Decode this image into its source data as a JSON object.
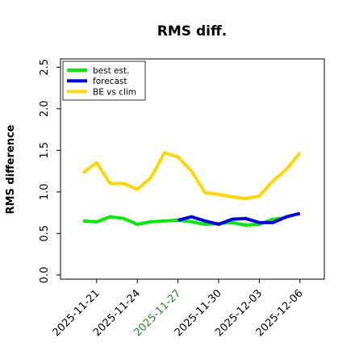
{
  "chart_data": {
    "type": "line",
    "title": "RMS diff.",
    "ylabel": "RMS difference",
    "xlabel": "",
    "ylim": [
      -0.05,
      2.6
    ],
    "yticks": [
      0.0,
      0.5,
      1.0,
      1.5,
      2.0,
      2.5
    ],
    "ytick_labels": [
      "0.0",
      "0.5",
      "1.0",
      "1.5",
      "2.0",
      "2.5"
    ],
    "x_dates": [
      "2025-11-20",
      "2025-11-21",
      "2025-11-22",
      "2025-11-23",
      "2025-11-24",
      "2025-11-25",
      "2025-11-26",
      "2025-11-27",
      "2025-11-28",
      "2025-11-29",
      "2025-11-30",
      "2025-12-01",
      "2025-12-02",
      "2025-12-03",
      "2025-12-04",
      "2025-12-05",
      "2025-12-06"
    ],
    "xtick_labels": [
      "2025-11-21",
      "2025-11-24",
      "2025-11-27",
      "2025-11-30",
      "2025-12-03",
      "2025-12-06"
    ],
    "xtick_highlight": "2025-11-27",
    "xtick_highlight_color": "#228B22",
    "legend_position": "top-left",
    "grid": false,
    "series": [
      {
        "name": "best est.",
        "color": "#00ee00",
        "x_start": 0,
        "values": [
          0.65,
          0.64,
          0.7,
          0.68,
          0.61,
          0.64,
          0.65,
          0.66,
          0.64,
          0.61,
          0.62,
          0.63,
          0.6,
          0.61,
          0.67,
          0.69
        ]
      },
      {
        "name": "forecast",
        "color": "#0000ee",
        "x_start": 7,
        "values": [
          0.66,
          0.7,
          0.65,
          0.61,
          0.67,
          0.68,
          0.63,
          0.63,
          0.7,
          0.74
        ]
      },
      {
        "name": "BE vs clim",
        "color": "#ffd700",
        "x_start": 0,
        "values": [
          1.23,
          1.35,
          1.1,
          1.1,
          1.03,
          1.17,
          1.47,
          1.42,
          1.25,
          0.99,
          0.97,
          0.94,
          0.92,
          0.95,
          1.13,
          1.27,
          1.47
        ]
      }
    ]
  }
}
